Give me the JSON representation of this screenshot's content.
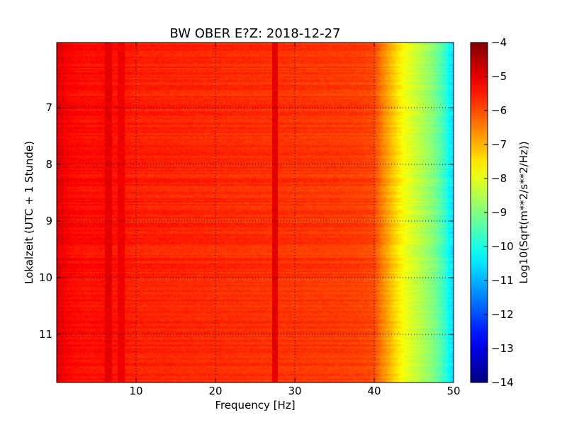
{
  "chart_data": {
    "type": "heatmap",
    "title": "BW OBER E?Z: 2018-12-27",
    "xlabel": "Frequency [Hz]",
    "ylabel": "Lokalzeit (UTC + 1 Stunde)",
    "colorbar_label": "Log10(Sqrt(m**2/s**2/Hz))",
    "xlim": [
      0,
      50
    ],
    "ylim": [
      5.85,
      11.85
    ],
    "y_inverted": true,
    "x_ticks": [
      10,
      20,
      30,
      40,
      50
    ],
    "x_tick_labels": [
      "10",
      "20",
      "30",
      "40",
      "50"
    ],
    "y_ticks": [
      7,
      8,
      9,
      10,
      11
    ],
    "y_tick_labels": [
      "7",
      "8",
      "9",
      "10",
      "11"
    ],
    "grid": true,
    "colormap": "jet",
    "color_range": [
      -14,
      -4
    ],
    "colorbar_ticks": [
      -4,
      -5,
      -6,
      -7,
      -8,
      -9,
      -10,
      -11,
      -12,
      -13,
      -14
    ],
    "colorbar_tick_labels": [
      "−4",
      "−5",
      "−6",
      "−7",
      "−8",
      "−9",
      "−10",
      "−11",
      "−12",
      "−13",
      "−14"
    ],
    "frequency_profile": {
      "x": [
        0,
        0.5,
        1,
        2,
        4,
        6,
        10,
        15,
        20,
        25,
        30,
        35,
        38,
        40,
        41,
        42,
        43,
        44,
        45,
        46,
        47,
        48,
        49,
        49.5,
        50
      ],
      "level": [
        -4.9,
        -5.0,
        -5.15,
        -5.3,
        -5.4,
        -5.35,
        -5.55,
        -5.6,
        -5.65,
        -5.7,
        -5.75,
        -5.8,
        -5.85,
        -5.95,
        -6.5,
        -7.0,
        -7.5,
        -7.9,
        -8.2,
        -8.5,
        -8.8,
        -9.2,
        -9.8,
        -10.3,
        -10.6
      ]
    },
    "features": [
      {
        "label": "27-28 Hz line",
        "x": 27.5,
        "level": -5.0
      },
      {
        "label": "6-7 Hz line",
        "x": 6.5,
        "level": -5.0
      },
      {
        "label": "8 Hz line",
        "x": 8.1,
        "level": -5.1
      }
    ]
  }
}
